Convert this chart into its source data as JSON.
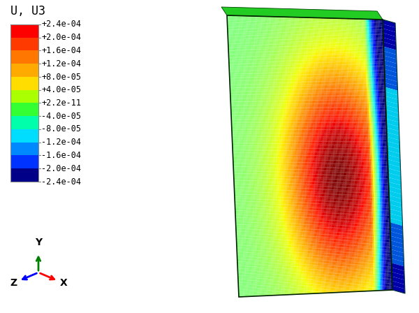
{
  "title": "U, U3",
  "colorbar_labels": [
    "+2.4e-04",
    "+2.0e-04",
    "+1.6e-04",
    "+1.2e-04",
    "+8.0e-05",
    "+4.0e-05",
    "+2.2e-11",
    "-4.0e-05",
    "-8.0e-05",
    "-1.2e-04",
    "-1.6e-04",
    "-2.0e-04",
    "-2.4e-04"
  ],
  "vmin": -0.00024,
  "vmax": 0.00024,
  "bg_color": "#ffffff",
  "cb_colors": [
    "#ff0000",
    "#ff3a00",
    "#ff7700",
    "#ffaa00",
    "#ffdd00",
    "#aaff00",
    "#33ff33",
    "#00ffaa",
    "#00ddff",
    "#0088ff",
    "#0033ff",
    "#000088"
  ],
  "label_fontsize": 8.5,
  "title_fontsize": 12
}
